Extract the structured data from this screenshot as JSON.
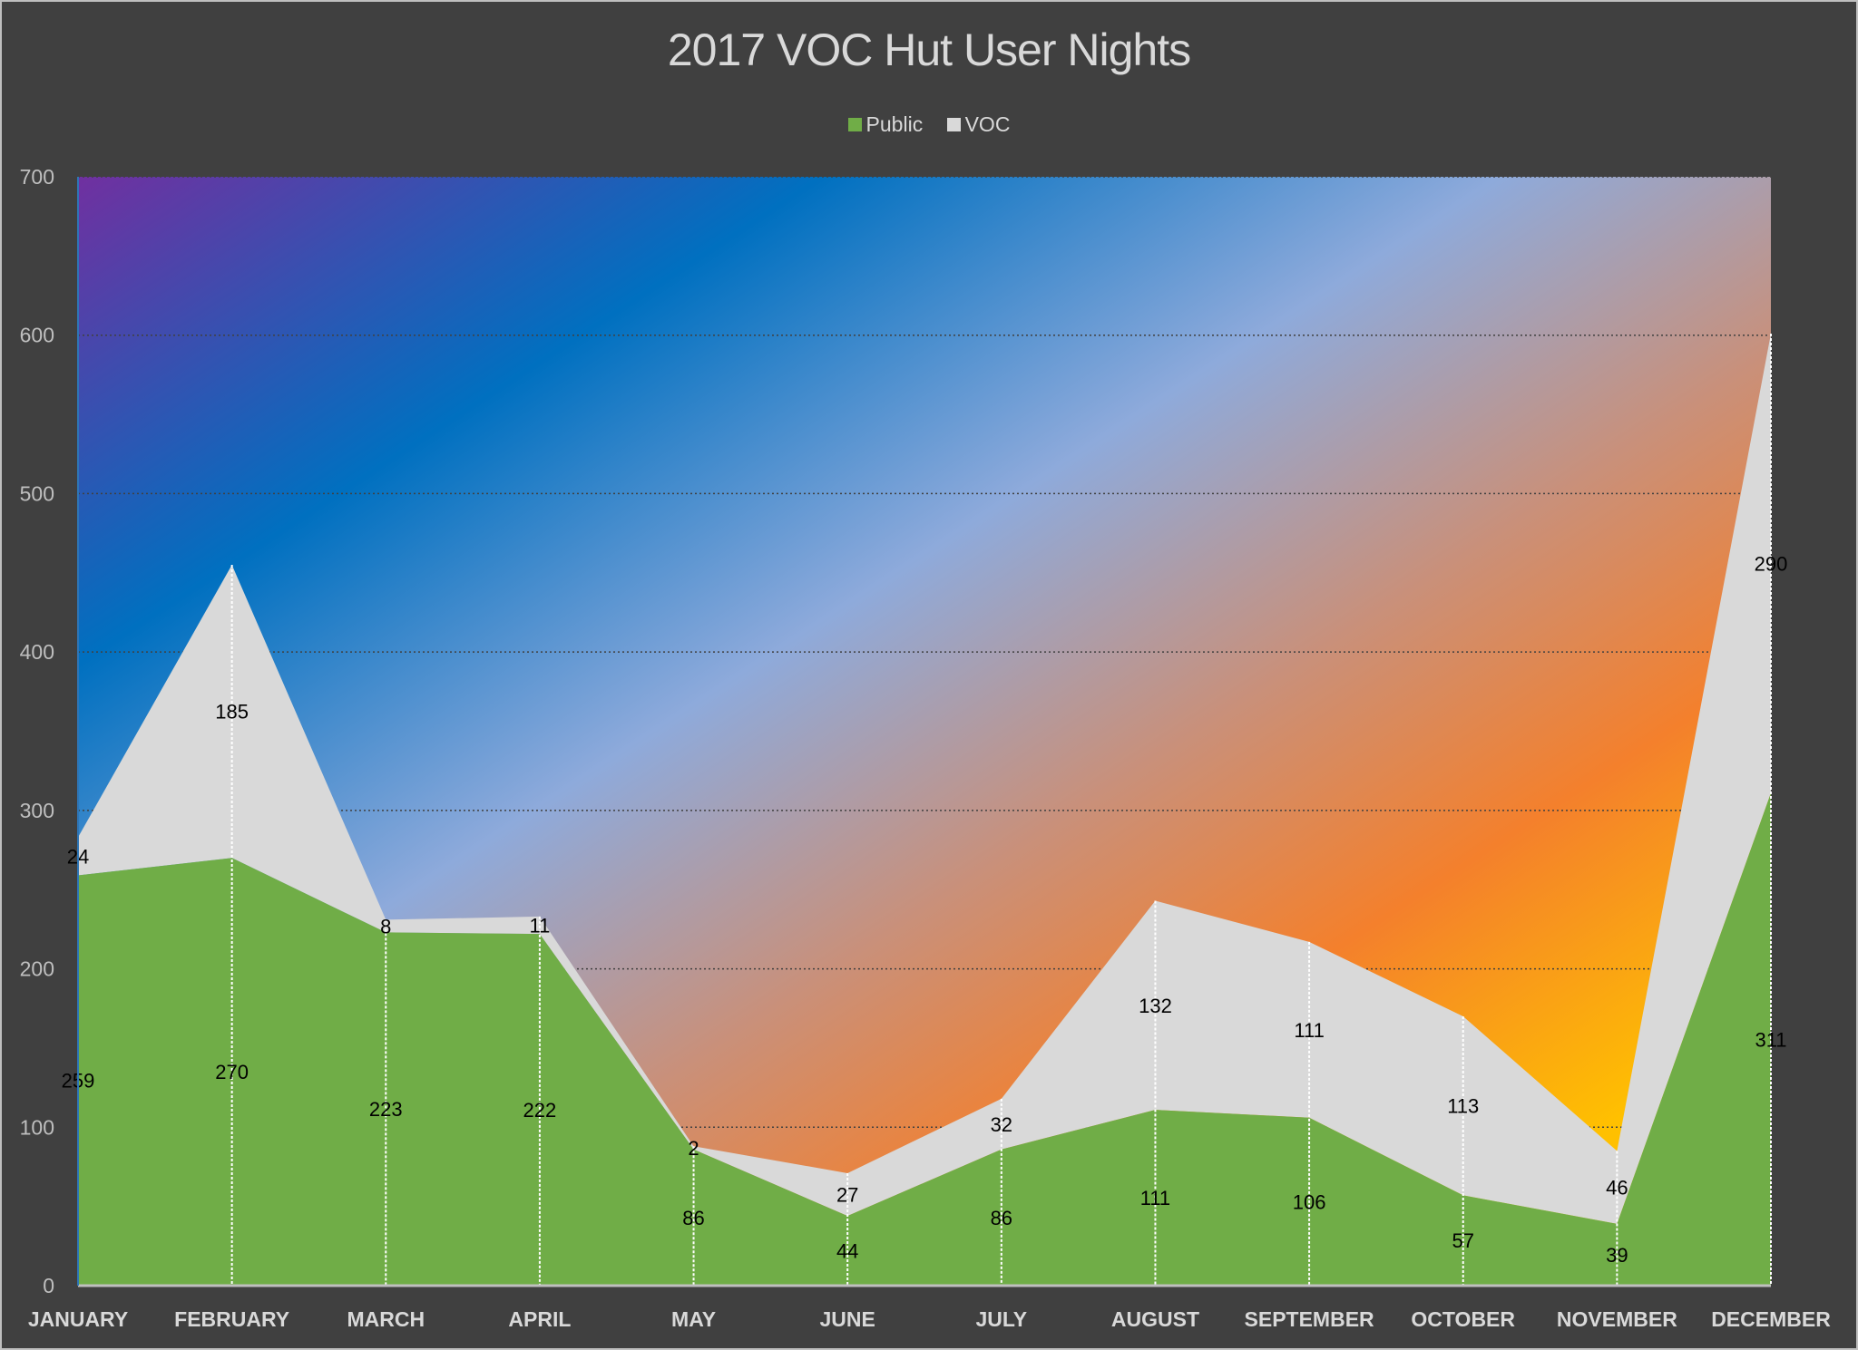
{
  "chart_data": {
    "type": "area",
    "stacked": true,
    "title": "2017 VOC Hut User Nights",
    "categories": [
      "JANUARY",
      "FEBRUARY",
      "MARCH",
      "APRIL",
      "MAY",
      "JUNE",
      "JULY",
      "AUGUST",
      "SEPTEMBER",
      "OCTOBER",
      "NOVEMBER",
      "DECEMBER"
    ],
    "series": [
      {
        "name": "Public",
        "color": "#70ad47",
        "values": [
          259,
          270,
          223,
          222,
          86,
          44,
          86,
          111,
          106,
          57,
          39,
          311
        ]
      },
      {
        "name": "VOC",
        "color": "#d9d9d9",
        "values": [
          24,
          185,
          8,
          11,
          2,
          27,
          32,
          132,
          111,
          113,
          46,
          290
        ]
      }
    ],
    "ylim": [
      0,
      700
    ],
    "yticks": [
      0,
      100,
      200,
      300,
      400,
      500,
      600,
      700
    ],
    "grid": true,
    "legend": "top",
    "data_labels": true,
    "plot_background": "diagonal gradient purple-blue-orange-yellow",
    "background_color": "#404040"
  }
}
